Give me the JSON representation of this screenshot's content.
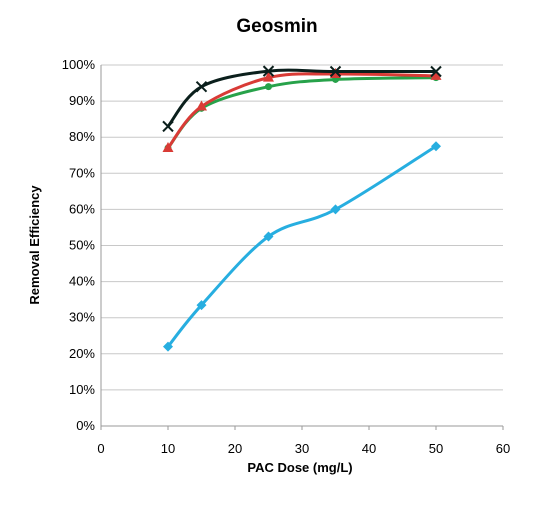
{
  "chart_data": {
    "type": "line",
    "title": "Geosmin",
    "xlabel": "PAC Dose (mg/L)",
    "ylabel": "Removal Efficiency",
    "xlim": [
      0,
      60
    ],
    "ylim": [
      0,
      100
    ],
    "x_ticks": [
      "0",
      "10",
      "20",
      "30",
      "40",
      "50",
      "60"
    ],
    "y_ticks": [
      "0%",
      "10%",
      "20%",
      "30%",
      "40%",
      "50%",
      "60%",
      "70%",
      "80%",
      "90%",
      "100%"
    ],
    "grid": "horizontal",
    "legend": "none",
    "series": [
      {
        "color": "#0b1f1c",
        "marker": "x",
        "x": [
          10,
          15,
          25,
          35,
          50
        ],
        "y": [
          83,
          94,
          98.3,
          98.2,
          98.2
        ]
      },
      {
        "color": "#d93b36",
        "marker": "triangle",
        "x": [
          10,
          15,
          25,
          35,
          50
        ],
        "y": [
          77,
          88.5,
          96.5,
          97.5,
          97
        ]
      },
      {
        "color": "#27a24a",
        "marker": "circle",
        "x": [
          10,
          15,
          25,
          35,
          50
        ],
        "y": [
          77,
          88,
          94,
          96,
          96.5
        ]
      },
      {
        "color": "#27aee0",
        "marker": "diamond",
        "x": [
          10,
          15,
          25,
          35,
          50
        ],
        "y": [
          22,
          33.5,
          52.5,
          60,
          77.5
        ]
      }
    ]
  }
}
